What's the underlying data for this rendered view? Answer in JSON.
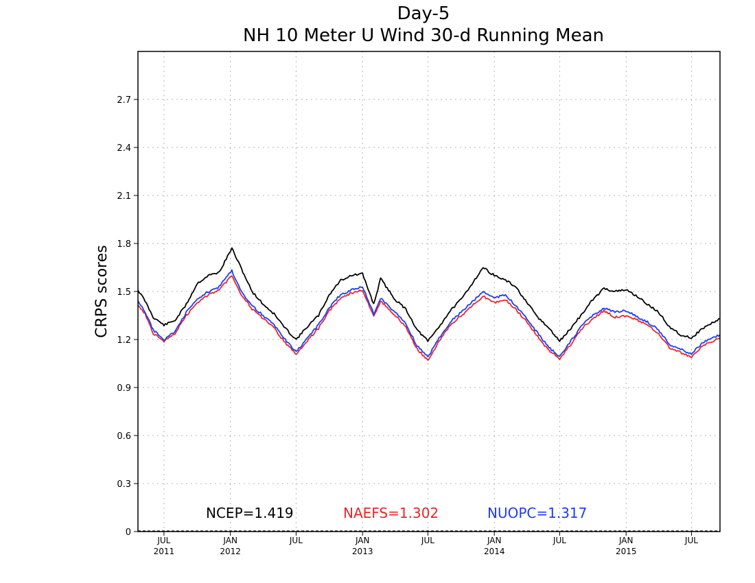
{
  "chart_data": {
    "type": "line",
    "title": "Day-5",
    "subtitle": "NH 10 Meter U Wind 30-d Running Mean",
    "xlabel": "",
    "ylabel": "CRPS scores",
    "ylim": [
      0,
      3.0
    ],
    "xlim": [
      "2011-04-20",
      "2015-09-18"
    ],
    "grid": true,
    "y_ticks": [
      0,
      0.3,
      0.6,
      0.9,
      1.2,
      1.5,
      1.8,
      2.1,
      2.4,
      2.7
    ],
    "y_tick_labels": [
      "0",
      "0.3",
      "0.6",
      "0.9",
      "1.2",
      "1.5",
      "1.8",
      "2.1",
      "2.4",
      "2.7"
    ],
    "x_ticks": [
      {
        "date": "2011-07-01",
        "month": "JUL",
        "year": "2011"
      },
      {
        "date": "2012-01-01",
        "month": "JAN",
        "year": "2012"
      },
      {
        "date": "2012-07-01",
        "month": "JUL",
        "year": ""
      },
      {
        "date": "2013-01-01",
        "month": "JAN",
        "year": "2013"
      },
      {
        "date": "2013-07-01",
        "month": "JUL",
        "year": ""
      },
      {
        "date": "2014-01-01",
        "month": "JAN",
        "year": "2014"
      },
      {
        "date": "2014-07-01",
        "month": "JUL",
        "year": ""
      },
      {
        "date": "2015-01-01",
        "month": "JAN",
        "year": "2015"
      },
      {
        "date": "2015-07-01",
        "month": "JUL",
        "year": ""
      }
    ],
    "legend_placement": "bottom",
    "series": [
      {
        "name": "NCEP",
        "mean_label": "NCEP=1.419",
        "color": "#000000",
        "points": [
          [
            "2011-04-20",
            1.51
          ],
          [
            "2011-05-10",
            1.44
          ],
          [
            "2011-06-01",
            1.34
          ],
          [
            "2011-07-01",
            1.29
          ],
          [
            "2011-08-01",
            1.32
          ],
          [
            "2011-09-01",
            1.42
          ],
          [
            "2011-10-01",
            1.55
          ],
          [
            "2011-11-01",
            1.6
          ],
          [
            "2011-12-01",
            1.62
          ],
          [
            "2012-01-05",
            1.77
          ],
          [
            "2012-02-01",
            1.64
          ],
          [
            "2012-03-01",
            1.5
          ],
          [
            "2012-04-01",
            1.42
          ],
          [
            "2012-05-01",
            1.36
          ],
          [
            "2012-06-01",
            1.27
          ],
          [
            "2012-07-01",
            1.2
          ],
          [
            "2012-08-01",
            1.28
          ],
          [
            "2012-09-01",
            1.35
          ],
          [
            "2012-10-01",
            1.48
          ],
          [
            "2012-11-01",
            1.57
          ],
          [
            "2012-12-01",
            1.6
          ],
          [
            "2013-01-01",
            1.61
          ],
          [
            "2013-02-01",
            1.42
          ],
          [
            "2013-02-20",
            1.58
          ],
          [
            "2013-04-01",
            1.45
          ],
          [
            "2013-05-01",
            1.39
          ],
          [
            "2013-06-01",
            1.26
          ],
          [
            "2013-07-01",
            1.19
          ],
          [
            "2013-08-01",
            1.28
          ],
          [
            "2013-09-01",
            1.38
          ],
          [
            "2013-10-01",
            1.45
          ],
          [
            "2013-12-01",
            1.65
          ],
          [
            "2014-01-01",
            1.6
          ],
          [
            "2014-02-01",
            1.57
          ],
          [
            "2014-03-01",
            1.53
          ],
          [
            "2014-04-01",
            1.43
          ],
          [
            "2014-05-01",
            1.34
          ],
          [
            "2014-06-01",
            1.27
          ],
          [
            "2014-07-01",
            1.19
          ],
          [
            "2014-08-01",
            1.27
          ],
          [
            "2014-09-01",
            1.36
          ],
          [
            "2014-10-01",
            1.45
          ],
          [
            "2014-11-01",
            1.52
          ],
          [
            "2014-12-01",
            1.5
          ],
          [
            "2015-01-01",
            1.51
          ],
          [
            "2015-02-01",
            1.47
          ],
          [
            "2015-03-01",
            1.42
          ],
          [
            "2015-04-01",
            1.37
          ],
          [
            "2015-05-01",
            1.28
          ],
          [
            "2015-06-01",
            1.23
          ],
          [
            "2015-07-01",
            1.21
          ],
          [
            "2015-08-01",
            1.27
          ],
          [
            "2015-09-18",
            1.33
          ]
        ]
      },
      {
        "name": "NAEFS",
        "mean_label": "NAEFS=1.302",
        "color": "#e8262b",
        "points": [
          [
            "2011-04-20",
            1.42
          ],
          [
            "2011-05-10",
            1.36
          ],
          [
            "2011-06-01",
            1.24
          ],
          [
            "2011-07-01",
            1.19
          ],
          [
            "2011-08-01",
            1.24
          ],
          [
            "2011-09-01",
            1.35
          ],
          [
            "2011-10-01",
            1.43
          ],
          [
            "2011-11-01",
            1.48
          ],
          [
            "2011-12-01",
            1.51
          ],
          [
            "2012-01-05",
            1.6
          ],
          [
            "2012-02-01",
            1.48
          ],
          [
            "2012-03-01",
            1.39
          ],
          [
            "2012-04-01",
            1.33
          ],
          [
            "2012-05-01",
            1.27
          ],
          [
            "2012-06-01",
            1.18
          ],
          [
            "2012-07-01",
            1.11
          ],
          [
            "2012-08-01",
            1.19
          ],
          [
            "2012-09-01",
            1.27
          ],
          [
            "2012-10-01",
            1.38
          ],
          [
            "2012-11-01",
            1.46
          ],
          [
            "2012-12-01",
            1.49
          ],
          [
            "2013-01-01",
            1.51
          ],
          [
            "2013-02-01",
            1.34
          ],
          [
            "2013-02-20",
            1.44
          ],
          [
            "2013-04-01",
            1.35
          ],
          [
            "2013-05-01",
            1.28
          ],
          [
            "2013-06-01",
            1.14
          ],
          [
            "2013-07-01",
            1.07
          ],
          [
            "2013-08-01",
            1.19
          ],
          [
            "2013-09-01",
            1.29
          ],
          [
            "2013-10-01",
            1.35
          ],
          [
            "2013-12-01",
            1.47
          ],
          [
            "2014-01-01",
            1.43
          ],
          [
            "2014-02-01",
            1.45
          ],
          [
            "2014-03-01",
            1.39
          ],
          [
            "2014-04-01",
            1.31
          ],
          [
            "2014-05-01",
            1.22
          ],
          [
            "2014-06-01",
            1.13
          ],
          [
            "2014-07-01",
            1.08
          ],
          [
            "2014-08-01",
            1.17
          ],
          [
            "2014-09-01",
            1.27
          ],
          [
            "2014-10-01",
            1.33
          ],
          [
            "2014-11-01",
            1.38
          ],
          [
            "2014-12-01",
            1.34
          ],
          [
            "2015-01-01",
            1.35
          ],
          [
            "2015-02-01",
            1.32
          ],
          [
            "2015-03-01",
            1.29
          ],
          [
            "2015-04-01",
            1.24
          ],
          [
            "2015-05-01",
            1.15
          ],
          [
            "2015-06-01",
            1.12
          ],
          [
            "2015-07-01",
            1.09
          ],
          [
            "2015-08-01",
            1.16
          ],
          [
            "2015-09-18",
            1.21
          ]
        ]
      },
      {
        "name": "NUOPC",
        "mean_label": "NUOPC=1.317",
        "color": "#1f3bf5",
        "points": [
          [
            "2011-04-20",
            1.44
          ],
          [
            "2011-05-10",
            1.37
          ],
          [
            "2011-06-01",
            1.26
          ],
          [
            "2011-07-01",
            1.2
          ],
          [
            "2011-08-01",
            1.25
          ],
          [
            "2011-09-01",
            1.37
          ],
          [
            "2011-10-01",
            1.45
          ],
          [
            "2011-11-01",
            1.5
          ],
          [
            "2011-12-01",
            1.53
          ],
          [
            "2012-01-05",
            1.63
          ],
          [
            "2012-02-01",
            1.5
          ],
          [
            "2012-03-01",
            1.41
          ],
          [
            "2012-04-01",
            1.35
          ],
          [
            "2012-05-01",
            1.29
          ],
          [
            "2012-06-01",
            1.2
          ],
          [
            "2012-07-01",
            1.12
          ],
          [
            "2012-08-01",
            1.21
          ],
          [
            "2012-09-01",
            1.29
          ],
          [
            "2012-10-01",
            1.4
          ],
          [
            "2012-11-01",
            1.48
          ],
          [
            "2012-12-01",
            1.51
          ],
          [
            "2013-01-01",
            1.53
          ],
          [
            "2013-02-01",
            1.36
          ],
          [
            "2013-02-20",
            1.46
          ],
          [
            "2013-04-01",
            1.37
          ],
          [
            "2013-05-01",
            1.3
          ],
          [
            "2013-06-01",
            1.16
          ],
          [
            "2013-07-01",
            1.09
          ],
          [
            "2013-08-01",
            1.21
          ],
          [
            "2013-09-01",
            1.31
          ],
          [
            "2013-10-01",
            1.37
          ],
          [
            "2013-12-01",
            1.5
          ],
          [
            "2014-01-01",
            1.46
          ],
          [
            "2014-02-01",
            1.48
          ],
          [
            "2014-03-01",
            1.41
          ],
          [
            "2014-04-01",
            1.33
          ],
          [
            "2014-05-01",
            1.24
          ],
          [
            "2014-06-01",
            1.15
          ],
          [
            "2014-07-01",
            1.09
          ],
          [
            "2014-08-01",
            1.19
          ],
          [
            "2014-09-01",
            1.29
          ],
          [
            "2014-10-01",
            1.35
          ],
          [
            "2014-11-01",
            1.4
          ],
          [
            "2014-12-01",
            1.37
          ],
          [
            "2015-01-01",
            1.38
          ],
          [
            "2015-02-01",
            1.34
          ],
          [
            "2015-03-01",
            1.31
          ],
          [
            "2015-04-01",
            1.26
          ],
          [
            "2015-05-01",
            1.17
          ],
          [
            "2015-06-01",
            1.14
          ],
          [
            "2015-07-01",
            1.11
          ],
          [
            "2015-08-01",
            1.18
          ],
          [
            "2015-09-18",
            1.23
          ]
        ]
      }
    ]
  }
}
